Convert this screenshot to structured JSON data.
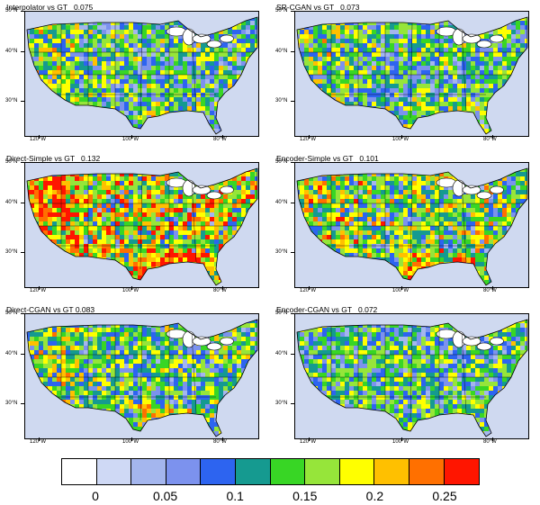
{
  "panels": [
    {
      "title": "Interpolator vs GT   0.075",
      "mean_error": 0.075,
      "lat_labels": [
        "50°N",
        "40°N",
        "30°N"
      ],
      "lon_labels": [
        "120°W",
        "100°W",
        "80°W"
      ]
    },
    {
      "title": "SR-CGAN vs GT   0.073",
      "mean_error": 0.073,
      "lat_labels": [
        "50°N",
        "40°N",
        "30°N"
      ],
      "lon_labels": [
        "120°W",
        "100°W",
        "80°W"
      ]
    },
    {
      "title": "Direct-Simple vs GT   0.132",
      "mean_error": 0.132,
      "lat_labels": [
        "50°N",
        "40°N",
        "30°N"
      ],
      "lon_labels": [
        "120°W",
        "100°W",
        "80°W"
      ]
    },
    {
      "title": "Encoder-Simple vs GT   0.101",
      "mean_error": 0.101,
      "lat_labels": [
        "50°N",
        "40°N",
        "30°N"
      ],
      "lon_labels": [
        "120°W",
        "100°W",
        "80°W"
      ]
    },
    {
      "title": "Direct-CGAN vs GT 0.083",
      "mean_error": 0.083,
      "lat_labels": [
        "50°N",
        "40°N",
        "30°N"
      ],
      "lon_labels": [
        "120°W",
        "100°W",
        "80°W"
      ]
    },
    {
      "title": "Encoder-CGAN vs GT   0.072",
      "mean_error": 0.072,
      "lat_labels": [
        "50°N",
        "40°N",
        "30°N"
      ],
      "lon_labels": [
        "120°W",
        "100°W",
        "80°W"
      ]
    }
  ],
  "colorbar": {
    "colors": [
      "#ffffff",
      "#cfd9f5",
      "#a4b6ee",
      "#7c92ee",
      "#2d64f0",
      "#159a90",
      "#38d625",
      "#96e53a",
      "#ffff00",
      "#ffc000",
      "#ff7000",
      "#ff1500"
    ],
    "labels": [
      "0",
      "0.05",
      "0.1",
      "0.15",
      "0.2",
      "0.25"
    ]
  }
}
